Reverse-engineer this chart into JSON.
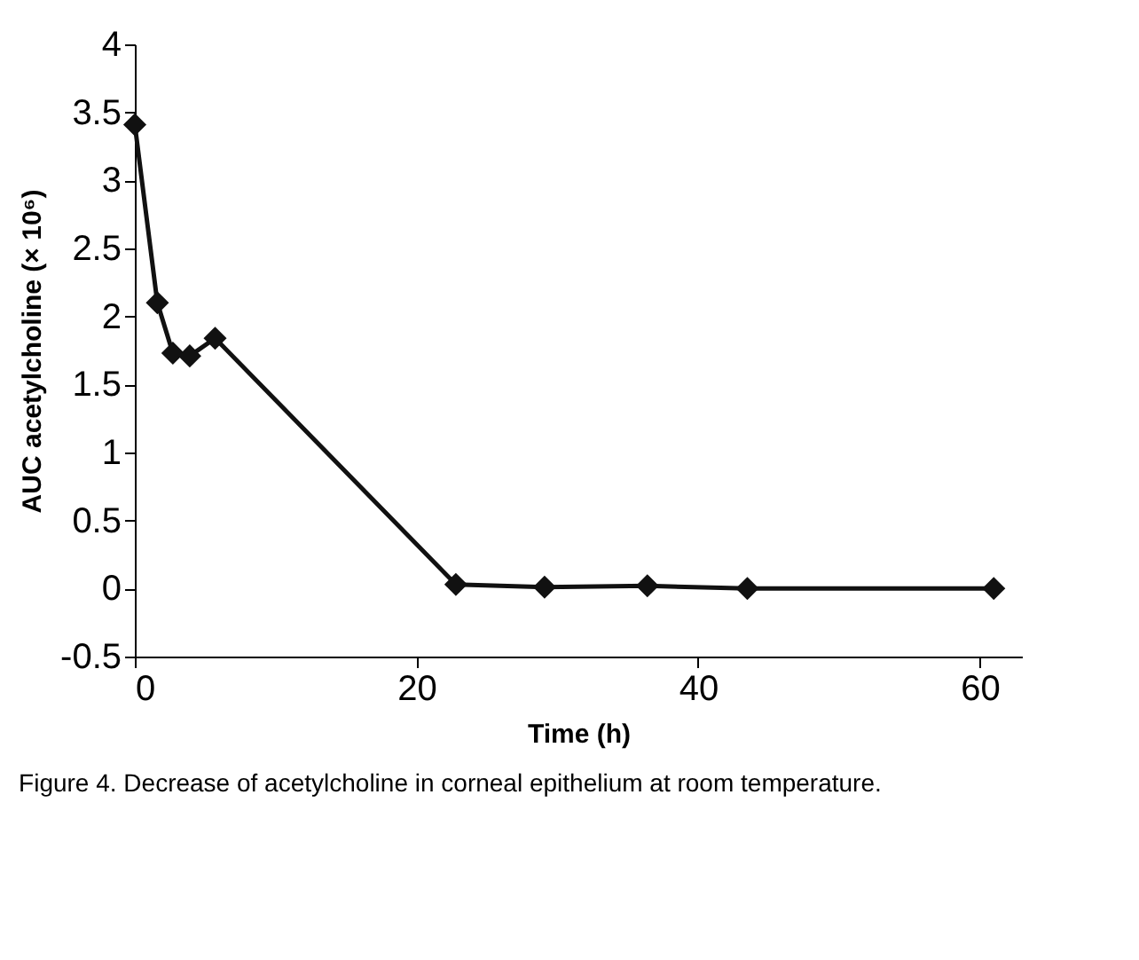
{
  "chart_data": {
    "type": "line",
    "xlabel": "Time (h)",
    "ylabel": "AUC acetylcholine (× 10⁶)",
    "x": [
      0,
      1.6,
      2.7,
      3.9,
      5.7,
      22.8,
      29.1,
      36.4,
      43.5,
      61
    ],
    "series": [
      {
        "color": "#111111",
        "values": [
          3.41,
          2.1,
          1.73,
          1.71,
          1.84,
          0.03,
          0.01,
          0.02,
          0,
          0
        ]
      }
    ],
    "xlim": [
      0,
      63
    ],
    "xticks": [
      0,
      20,
      40,
      60
    ],
    "ylim": [
      -0.5,
      4
    ],
    "yticks": [
      -0.5,
      0,
      0.5,
      1,
      1.5,
      2,
      2.5,
      3,
      3.5,
      4
    ],
    "marker": "diamond",
    "line_style": "solid",
    "grid": false,
    "legend": false,
    "annotations": [
      "Figure 4. Decrease of acetylcholine in corneal epithelium at room temperature."
    ]
  }
}
